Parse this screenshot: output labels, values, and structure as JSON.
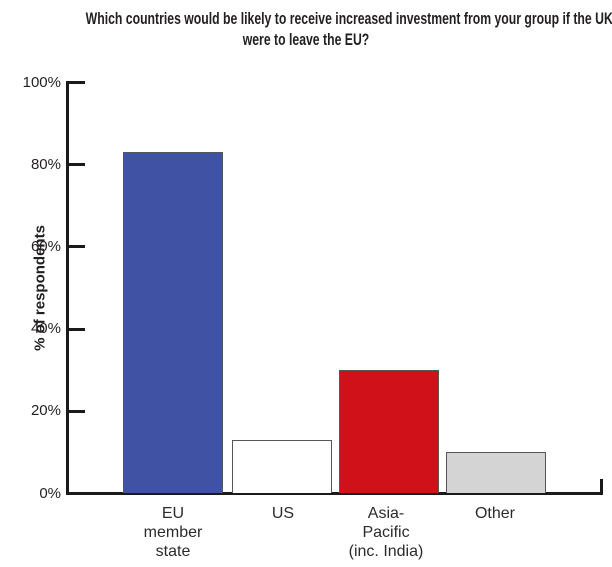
{
  "title_lines": [
    "Which countries would be likely to receive increased investment from your group if the UK",
    "were to leave the EU?"
  ],
  "chart_data": {
    "type": "bar",
    "title": "Which countries would be likely to receive increased investment from your group if the UK were to leave the EU?",
    "categories": [
      "EU member state",
      "US",
      "Asia-Pacific (inc. India)",
      "Other"
    ],
    "category_label_lines": [
      [
        "EU",
        "member",
        "state"
      ],
      [
        "US"
      ],
      [
        "Asia-",
        "Pacific",
        "(inc. India)"
      ],
      [
        "Other"
      ]
    ],
    "values": [
      83,
      13,
      30,
      10
    ],
    "bar_colors": [
      "#3F52A3",
      "#FFFFFF",
      "#D01119",
      "#D4D4D4"
    ],
    "bar_border_color": "#55565A",
    "xlabel": "",
    "ylabel": "% of respondents",
    "ylim": [
      0,
      100
    ],
    "ytick_values": [
      100,
      80,
      60,
      40,
      20,
      0
    ],
    "yticks": [
      "100%",
      "80%",
      "60%",
      "40%",
      "20%",
      "0%"
    ],
    "grid": false,
    "legend": false,
    "axis_color": "#1a1a1a",
    "text_color": "#231F20"
  }
}
